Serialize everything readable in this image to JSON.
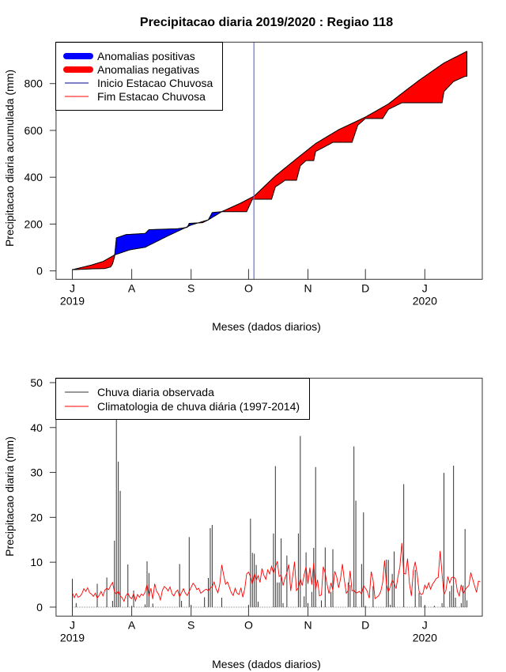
{
  "chart_data": [
    {
      "type": "area",
      "title": "Precipitacao diaria 2019/2020 : Regiao 118",
      "xlabel": "Meses (dados diarios)",
      "ylabel": "Precipitacao diaria acumulada (mm)",
      "x_unit": "days since 2019-07-01",
      "xlim": [
        -8.5,
        214
      ],
      "ylim": [
        -36,
        977
      ],
      "yticks": [
        0,
        200,
        400,
        600,
        800
      ],
      "month_ticks": [
        {
          "day": 0,
          "label": "J",
          "year": "2019"
        },
        {
          "day": 31,
          "label": "A"
        },
        {
          "day": 62,
          "label": "S"
        },
        {
          "day": 92,
          "label": "O"
        },
        {
          "day": 123,
          "label": "N"
        },
        {
          "day": 153,
          "label": "D"
        },
        {
          "day": 184,
          "label": "J",
          "year": "2020"
        }
      ],
      "legend": {
        "position": "top-left",
        "items": [
          {
            "label": "Anomalias positivas",
            "color": "#0000ff",
            "style": "thick"
          },
          {
            "label": "Anomalias negativas",
            "color": "#ff0000",
            "style": "thick"
          },
          {
            "label": "Inicio Estacao Chuvosa",
            "color": "#00008b",
            "style": "line"
          },
          {
            "label": "Fim Estacao Chuvosa",
            "color": "#ff0000",
            "style": "line"
          }
        ]
      },
      "rainy_season_start_day": 94.8,
      "series": [
        {
          "name": "Observada acumulada",
          "points": [
            [
              0,
              5
            ],
            [
              11,
              9
            ],
            [
              17,
              10
            ],
            [
              20,
              17
            ],
            [
              21,
              30
            ],
            [
              22,
              60
            ],
            [
              23,
              141
            ],
            [
              28,
              155
            ],
            [
              38,
              160
            ],
            [
              40,
              176
            ],
            [
              55,
              180
            ],
            [
              60,
              186
            ],
            [
              61,
              203
            ],
            [
              68,
              206
            ],
            [
              71,
              218
            ],
            [
              73,
              249
            ],
            [
              78,
              253
            ],
            [
              91,
              253
            ],
            [
              94,
              306
            ],
            [
              104,
              306
            ],
            [
              106,
              359
            ],
            [
              109,
              375
            ],
            [
              111,
              387
            ],
            [
              117,
              387
            ],
            [
              119,
              449
            ],
            [
              122,
              471
            ],
            [
              126,
              471
            ],
            [
              127,
              510
            ],
            [
              131,
              527
            ],
            [
              136,
              549
            ],
            [
              146,
              549
            ],
            [
              149,
              622
            ],
            [
              153,
              651
            ],
            [
              162,
              651
            ],
            [
              165,
              690
            ],
            [
              172,
              718
            ],
            [
              193,
              718
            ],
            [
              194,
              766
            ],
            [
              199,
              809
            ],
            [
              205,
              831
            ],
            [
              206,
              831
            ]
          ]
        },
        {
          "name": "Climatologia acumulada",
          "points": [
            [
              0,
              5
            ],
            [
              10,
              25
            ],
            [
              16,
              40
            ],
            [
              22,
              68
            ],
            [
              30,
              90
            ],
            [
              38,
              101
            ],
            [
              50,
              150
            ],
            [
              62,
              196
            ],
            [
              71,
              218
            ],
            [
              78,
              253
            ],
            [
              88,
              290
            ],
            [
              95,
              320
            ],
            [
              106,
              406
            ],
            [
              117,
              479
            ],
            [
              127,
              544
            ],
            [
              139,
              603
            ],
            [
              153,
              657
            ],
            [
              165,
              713
            ],
            [
              172,
              758
            ],
            [
              181,
              814
            ],
            [
              194,
              888
            ],
            [
              206,
              938
            ]
          ]
        }
      ],
      "colors": {
        "positive": "#0000ff",
        "negative": "#ff0000",
        "start_line": "#6b6bdc"
      }
    },
    {
      "type": "bar",
      "xlabel": "Meses (dados diarios)",
      "ylabel": "Precipitacao diaria (mm)",
      "xlim": [
        -8.5,
        214
      ],
      "ylim": [
        -2,
        51
      ],
      "yticks": [
        0,
        10,
        20,
        30,
        40,
        50
      ],
      "month_ticks": [
        {
          "day": 0,
          "label": "J",
          "year": "2019"
        },
        {
          "day": 31,
          "label": "A"
        },
        {
          "day": 62,
          "label": "S"
        },
        {
          "day": 92,
          "label": "O"
        },
        {
          "day": 123,
          "label": "N"
        },
        {
          "day": 153,
          "label": "D"
        },
        {
          "day": 184,
          "label": "J",
          "year": "2020"
        }
      ],
      "legend": {
        "position": "top-left",
        "items": [
          {
            "label": "Chuva diaria observada",
            "color": "#333333"
          },
          {
            "label": "Climatologia de chuva diária (1997-2014)",
            "color": "#ff0000"
          }
        ]
      },
      "observed_bars": [
        [
          0,
          6.3
        ],
        [
          2,
          0.9
        ],
        [
          13,
          5.2
        ],
        [
          18,
          6.6
        ],
        [
          21,
          1.4
        ],
        [
          22,
          14.8
        ],
        [
          23,
          42
        ],
        [
          24,
          32.4
        ],
        [
          25,
          25.9
        ],
        [
          29,
          9.5
        ],
        [
          32,
          3.7
        ],
        [
          38,
          0.6
        ],
        [
          39,
          10.2
        ],
        [
          40,
          7.6
        ],
        [
          42,
          0.8
        ],
        [
          56,
          9.6
        ],
        [
          57,
          1.4
        ],
        [
          61,
          15.6
        ],
        [
          62,
          0.5
        ],
        [
          69,
          2.2
        ],
        [
          71,
          6.5
        ],
        [
          72,
          17.6
        ],
        [
          73,
          18.3
        ],
        [
          78,
          2.1
        ],
        [
          92,
          0.5
        ],
        [
          93,
          19.7
        ],
        [
          94,
          12.1
        ],
        [
          95,
          11.9
        ],
        [
          96,
          9.4
        ],
        [
          97,
          1.2
        ],
        [
          105,
          16.4
        ],
        [
          106,
          31.4
        ],
        [
          107,
          5.5
        ],
        [
          108,
          5.5
        ],
        [
          109,
          15.3
        ],
        [
          110,
          0.9
        ],
        [
          112,
          11.5
        ],
        [
          118,
          16.4
        ],
        [
          119,
          38.1
        ],
        [
          121,
          2.4
        ],
        [
          122,
          12.2
        ],
        [
          123,
          0.9
        ],
        [
          125,
          3.4
        ],
        [
          126,
          13.2
        ],
        [
          127,
          31.2
        ],
        [
          130,
          1.5
        ],
        [
          132,
          13.3
        ],
        [
          135,
          3.4
        ],
        [
          136,
          12.9
        ],
        [
          144,
          5.5
        ],
        [
          145,
          4.9
        ],
        [
          147,
          35.8
        ],
        [
          148,
          23.7
        ],
        [
          151,
          9.6
        ],
        [
          152,
          21.1
        ],
        [
          157,
          4.7
        ],
        [
          164,
          10.6
        ],
        [
          165,
          10.5
        ],
        [
          166,
          0.5
        ],
        [
          167,
          7.4
        ],
        [
          168,
          12.4
        ],
        [
          173,
          27.4
        ],
        [
          179,
          8.3
        ],
        [
          181,
          3.2
        ],
        [
          182,
          2.5
        ],
        [
          184,
          0.5
        ],
        [
          189,
          0.3
        ],
        [
          193,
          0.9
        ],
        [
          194,
          29.9
        ],
        [
          197,
          3.5
        ],
        [
          198,
          4.8
        ],
        [
          199,
          31.5
        ],
        [
          200,
          2.1
        ],
        [
          203,
          0.9
        ],
        [
          204,
          4.8
        ],
        [
          205,
          17.4
        ],
        [
          206,
          1.5
        ]
      ],
      "observed_last_day": 206,
      "climatology_daily": [
        3.2,
        2.1,
        3.0,
        2.2,
        2.4,
        3.0,
        4.1,
        3.5,
        4.3,
        3.2,
        2.9,
        2.4,
        3.1,
        2.0,
        2.6,
        3.5,
        2.5,
        3.8,
        4.2,
        3.9,
        4.8,
        5.5,
        3.4,
        2.9,
        3.6,
        2.5,
        2.1,
        1.3,
        2.6,
        3.1,
        2.2,
        1.9,
        3.0,
        1.4,
        2.8,
        2.2,
        2.9,
        2.6,
        3.3,
        5.1,
        2.4,
        4.2,
        1.8,
        5.2,
        3.5,
        2.9,
        1.6,
        3.7,
        4.6,
        4.2,
        3.6,
        4.5,
        3.0,
        2.5,
        3.4,
        3.8,
        2.3,
        3.2,
        4.1,
        3.1,
        2.6,
        3.5,
        4.4,
        5.3,
        4.8,
        3.9,
        4.2,
        3.1,
        3.4,
        3.8,
        4.0,
        3.6,
        4.3,
        4.5,
        5.6,
        4.1,
        3.2,
        5.2,
        9.4,
        7.1,
        5.1,
        5.6,
        4.4,
        3.2,
        2.6,
        4.2,
        3.1,
        2.8,
        4.3,
        2.2,
        4.1,
        7.4,
        7.8,
        6.8,
        5.1,
        7.5,
        6.0,
        7.0,
        5.5,
        8.6,
        7.1,
        6.2,
        8.3,
        7.4,
        9.1,
        7.6,
        8.9,
        10.2,
        6.8,
        7.2,
        4.8,
        6.5,
        7.6,
        9.5,
        3.6,
        6.8,
        10.1,
        3.7,
        4.3,
        6.3,
        4.8,
        7.2,
        9.0,
        5.2,
        8.8,
        5.0,
        9.8,
        3.9,
        6.1,
        2.5,
        2.7,
        9.0,
        7.6,
        5.0,
        3.0,
        5.4,
        3.7,
        8.0,
        6.7,
        4.3,
        6.3,
        9.6,
        6.0,
        3.1,
        3.7,
        8.1,
        3.6,
        3.8,
        3.1,
        3.3,
        3.5,
        2.9,
        4.8,
        4.2,
        3.5,
        2.0,
        7.9,
        6.0,
        1.9,
        2.2,
        2.6,
        3.5,
        5.5,
        10.4,
        5.0,
        3.4,
        4.5,
        6.0,
        5.3,
        4.1,
        6.8,
        9.0,
        14.3,
        7.5,
        7.4,
        10.8,
        5.2,
        2.5,
        8.1,
        10.1,
        7.3,
        3.5,
        2.8,
        3.0,
        4.9,
        4.1,
        5.4,
        4.0,
        5.1,
        5.7,
        6.4,
        6.6,
        12.5,
        7.4,
        2.8,
        3.7,
        6.8,
        5.4,
        6.6,
        6.7,
        6.3,
        3.5,
        2.5,
        5.0,
        3.0,
        3.8,
        4.4,
        4.8,
        7.7,
        6.2,
        4.7,
        3.3,
        5.8,
        5.6
      ],
      "colors": {
        "observed": "#333333",
        "climatology": "#ff0000"
      }
    }
  ]
}
